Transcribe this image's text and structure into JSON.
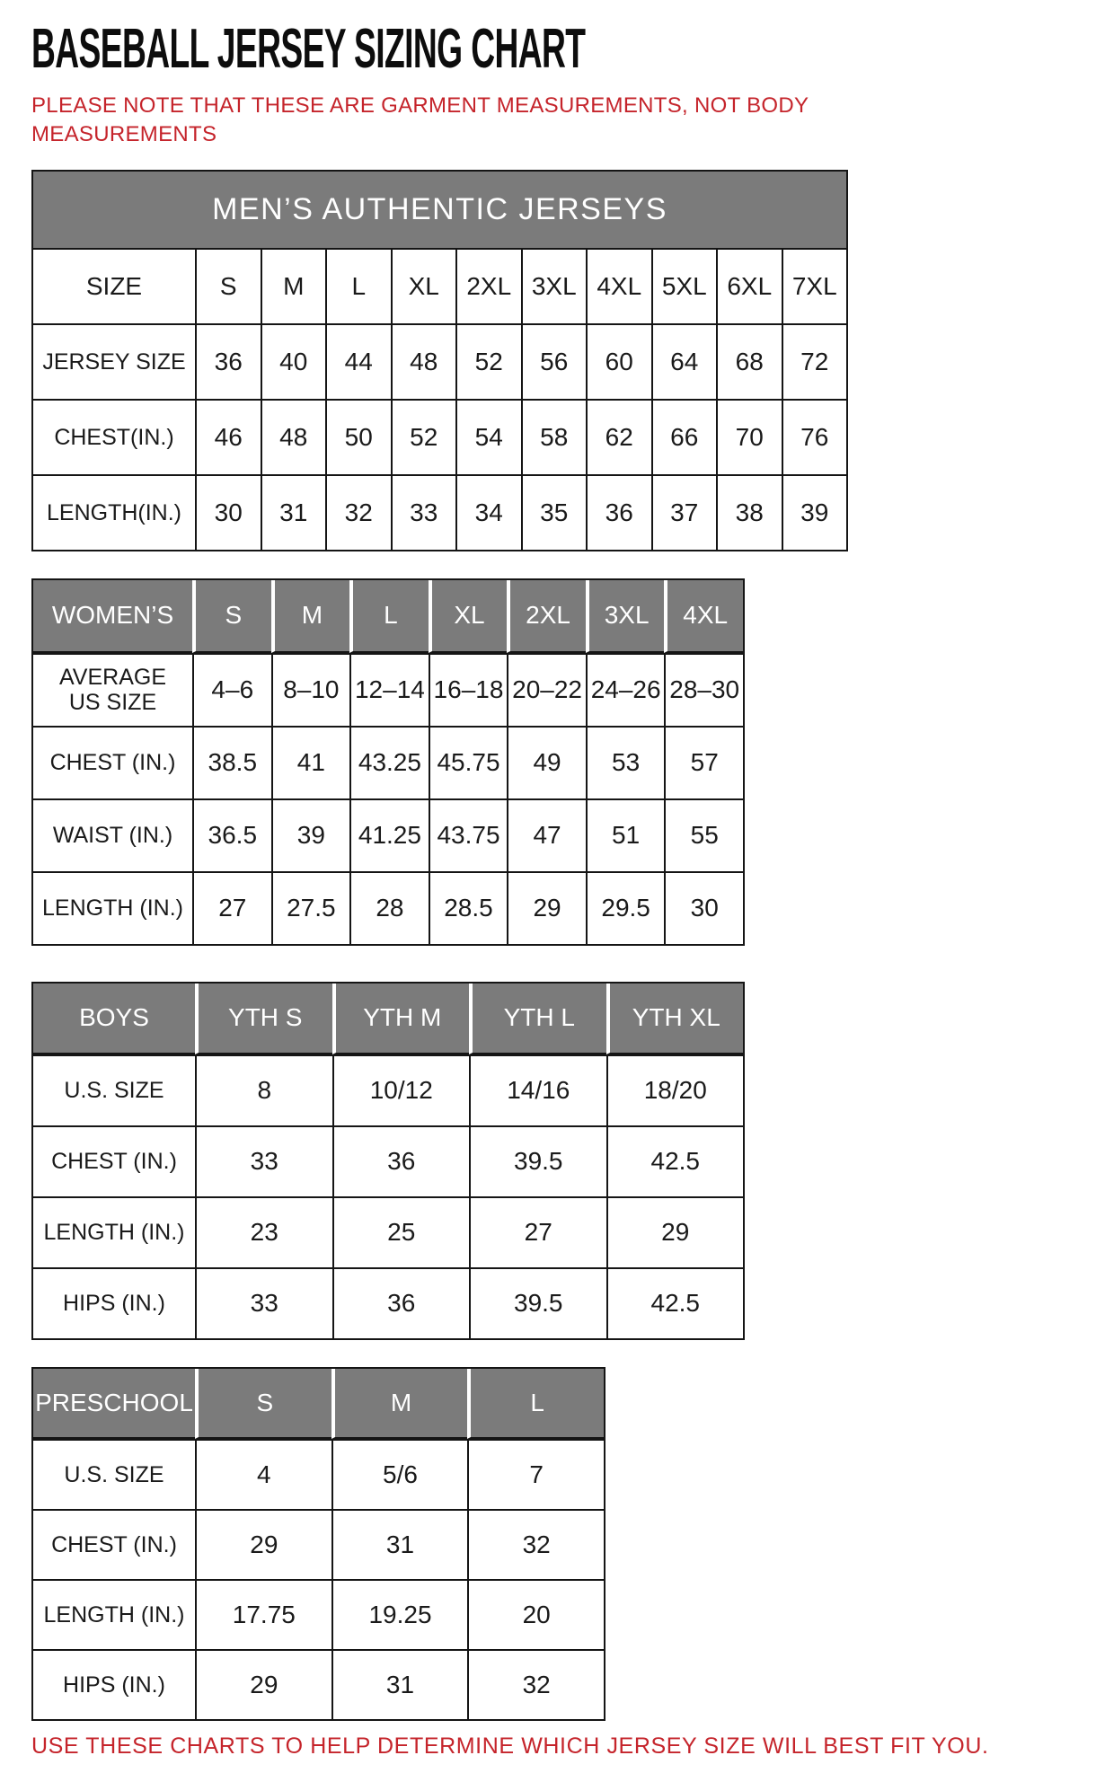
{
  "page": {
    "title": "BASEBALL JERSEY SIZING CHART",
    "note": "PLEASE NOTE THAT THESE ARE GARMENT MEASUREMENTS, NOT BODY MEASUREMENTS",
    "footer": "USE THESE CHARTS TO HELP DETERMINE WHICH JERSEY SIZE WILL BEST FIT YOU."
  },
  "colors": {
    "accent_red": "#C5242B",
    "header_gray": "#7B7B7B",
    "border_black": "#151515",
    "header_text_white": "#FFFFFF"
  },
  "chart_data": [
    {
      "type": "table",
      "title": "MEN’S AUTHENTIC JERSEYS",
      "banner": "MEN’S AUTHENTIC JERSEYS",
      "columns": [
        "SIZE",
        "S",
        "M",
        "L",
        "XL",
        "2XL",
        "3XL",
        "4XL",
        "5XL",
        "6XL",
        "7XL"
      ],
      "rows": [
        {
          "label": "JERSEY SIZE",
          "values": [
            "36",
            "40",
            "44",
            "48",
            "52",
            "56",
            "60",
            "64",
            "68",
            "72"
          ]
        },
        {
          "label": "CHEST(IN.)",
          "values": [
            "46",
            "48",
            "50",
            "52",
            "54",
            "58",
            "62",
            "66",
            "70",
            "76"
          ]
        },
        {
          "label": "LENGTH(IN.)",
          "values": [
            "30",
            "31",
            "32",
            "33",
            "34",
            "35",
            "36",
            "37",
            "38",
            "39"
          ]
        }
      ]
    },
    {
      "type": "table",
      "title": "WOMEN’S",
      "columns": [
        "WOMEN’S",
        "S",
        "M",
        "L",
        "XL",
        "2XL",
        "3XL",
        "4XL"
      ],
      "rows": [
        {
          "label": "AVERAGE US SIZE",
          "values": [
            "4–6",
            "8–10",
            "12–14",
            "16–18",
            "20–22",
            "24–26",
            "28–30"
          ]
        },
        {
          "label": "CHEST (IN.)",
          "values": [
            "38.5",
            "41",
            "43.25",
            "45.75",
            "49",
            "53",
            "57"
          ]
        },
        {
          "label": "WAIST (IN.)",
          "values": [
            "36.5",
            "39",
            "41.25",
            "43.75",
            "47",
            "51",
            "55"
          ]
        },
        {
          "label": "LENGTH (IN.)",
          "values": [
            "27",
            "27.5",
            "28",
            "28.5",
            "29",
            "29.5",
            "30"
          ]
        }
      ]
    },
    {
      "type": "table",
      "title": "BOYS",
      "columns": [
        "BOYS",
        "YTH S",
        "YTH M",
        "YTH L",
        "YTH XL"
      ],
      "rows": [
        {
          "label": "U.S. SIZE",
          "values": [
            "8",
            "10/12",
            "14/16",
            "18/20"
          ]
        },
        {
          "label": "CHEST (IN.)",
          "values": [
            "33",
            "36",
            "39.5",
            "42.5"
          ]
        },
        {
          "label": "LENGTH (IN.)",
          "values": [
            "23",
            "25",
            "27",
            "29"
          ]
        },
        {
          "label": "HIPS (IN.)",
          "values": [
            "33",
            "36",
            "39.5",
            "42.5"
          ]
        }
      ]
    },
    {
      "type": "table",
      "title": "PRESCHOOL",
      "columns": [
        "PRESCHOOL",
        "S",
        "M",
        "L"
      ],
      "rows": [
        {
          "label": "U.S. SIZE",
          "values": [
            "4",
            "5/6",
            "7"
          ]
        },
        {
          "label": "CHEST (IN.)",
          "values": [
            "29",
            "31",
            "32"
          ]
        },
        {
          "label": "LENGTH (IN.)",
          "values": [
            "17.75",
            "19.25",
            "20"
          ]
        },
        {
          "label": "HIPS (IN.)",
          "values": [
            "29",
            "31",
            "32"
          ]
        }
      ]
    }
  ]
}
